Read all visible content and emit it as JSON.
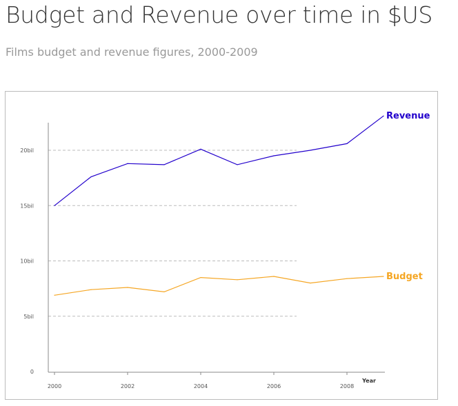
{
  "header": {
    "title": "Budget and Revenue over time in $US",
    "subtitle": "Films budget and revenue figures, 2000-2009"
  },
  "chart_data": {
    "type": "line",
    "x": [
      2000,
      2001,
      2002,
      2003,
      2004,
      2005,
      2006,
      2007,
      2008,
      2009
    ],
    "xticks": [
      "2000",
      "2002",
      "2004",
      "2006",
      "2008"
    ],
    "xlabel": "Year",
    "yticks": [
      "0",
      "5bil",
      "10bil",
      "15bil",
      "20bil"
    ],
    "ytick_values": [
      0,
      5,
      10,
      15,
      20
    ],
    "ylabel": "",
    "ylim": [
      0,
      22.5
    ],
    "grid": true,
    "series": [
      {
        "name": "Revenue",
        "color": "#2200cc",
        "values": [
          15.0,
          17.6,
          18.8,
          18.7,
          20.1,
          18.7,
          19.5,
          20.0,
          20.6,
          23.1
        ]
      },
      {
        "name": "Budget",
        "color": "#f5a623",
        "values": [
          6.9,
          7.4,
          7.6,
          7.2,
          8.5,
          8.3,
          8.6,
          8.0,
          8.4,
          8.6
        ]
      }
    ]
  }
}
